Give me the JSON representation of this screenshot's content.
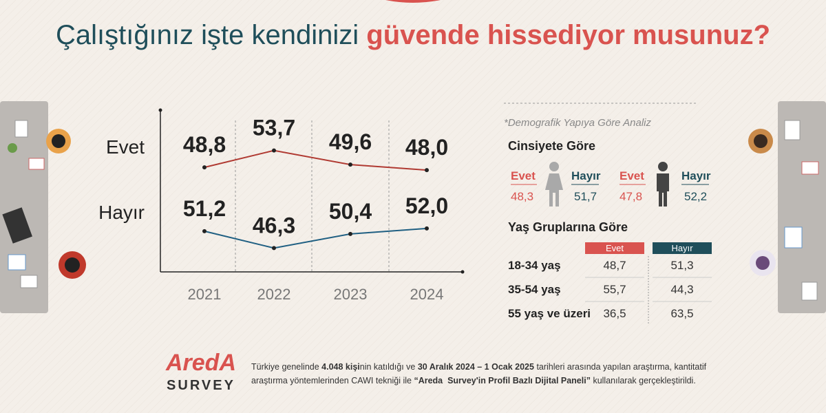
{
  "title_parts": [
    {
      "text": "Çalıştığınız işte kendinizi ",
      "color": "#1f4e5a",
      "bold": false
    },
    {
      "text": "güvende hissediyor musunuz?",
      "color": "#d9534f",
      "bold": true
    }
  ],
  "chart_data": {
    "type": "line",
    "categories": [
      "2021",
      "2022",
      "2023",
      "2024"
    ],
    "series": [
      {
        "name": "Evet",
        "color": "#b03a32",
        "values": [
          48.8,
          53.7,
          49.6,
          48.0
        ],
        "value_labels": [
          "48,8",
          "53,7",
          "49,6",
          "48,0"
        ]
      },
      {
        "name": "Hayır",
        "color": "#1f5f82",
        "values": [
          51.2,
          46.3,
          50.4,
          52.0
        ],
        "value_labels": [
          "51,2",
          "46,3",
          "50,4",
          "52,0"
        ]
      }
    ]
  },
  "demographics": {
    "subtitle": "*Demografik Yapıya Göre Analiz",
    "gender_title": "Cinsiyete Göre",
    "gender": [
      {
        "yes_label": "Evet",
        "yes_value": "48,3",
        "no_label": "Hayır",
        "no_value": "51,7"
      },
      {
        "yes_label": "Evet",
        "yes_value": "47,8",
        "no_label": "Hayır",
        "no_value": "52,2"
      }
    ],
    "age_title": "Yaş Gruplarına Göre",
    "age_header": [
      "Evet",
      "Hayır"
    ],
    "age_rows": [
      [
        "18-34 yaş",
        "48,7",
        "51,3"
      ],
      [
        "35-54 yaş",
        "55,7",
        "44,3"
      ],
      [
        "55 yaş ve üzeri",
        "36,5",
        "63,5"
      ]
    ]
  },
  "footer": {
    "logo": "AredA",
    "logo_sub": "SURVEY",
    "lines": [
      [
        {
          "text": "Türkiye genelinde ",
          "bold": false
        },
        {
          "text": "4.048 kişi",
          "bold": true
        },
        {
          "text": "nin katıldığı ve ",
          "bold": false
        },
        {
          "text": "30 Aralık 2024 – 1 Ocak 2025",
          "bold": true
        },
        {
          "text": " tarihleri arasında yapılan araştırma, kantitatif",
          "bold": false
        }
      ],
      [
        {
          "text": "araştırma yöntemlerinden CAWI tekniği ile ",
          "bold": false
        },
        {
          "text": "“Areda  Survey'in Profil Bazlı Dijital Paneli”",
          "bold": true
        },
        {
          "text": " kullanılarak gerçekleştirildi.",
          "bold": false
        }
      ]
    ]
  }
}
